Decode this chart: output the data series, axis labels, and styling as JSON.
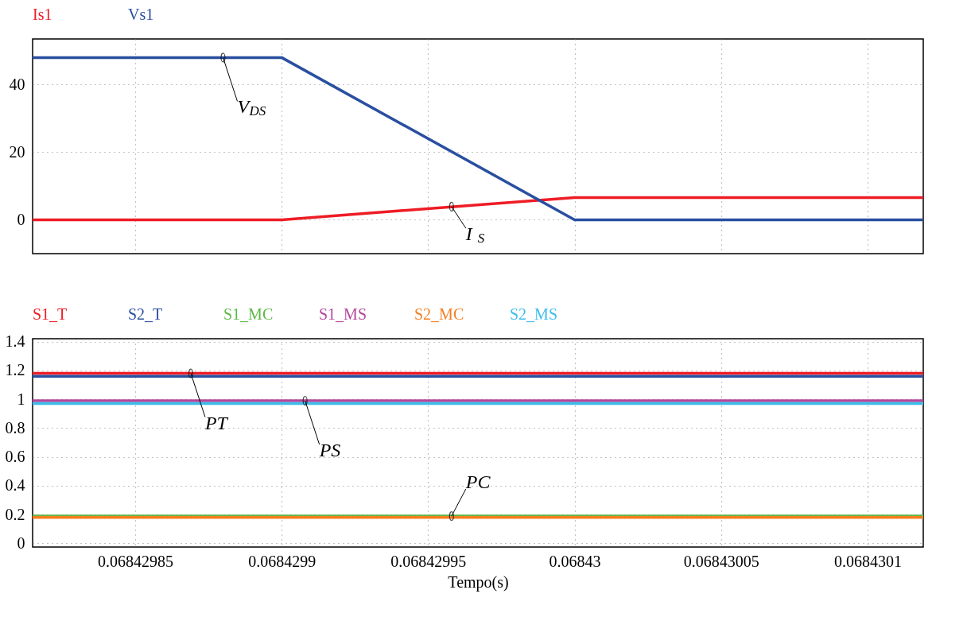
{
  "chart_data": [
    {
      "type": "line",
      "legend": "top left",
      "grid": true,
      "tick_labels": "y",
      "xlim": [
        0.068429815,
        0.068430119
      ],
      "xticks": [
        0.06842985,
        0.0684299,
        0.06842995,
        0.06843,
        0.06843005,
        0.0684301
      ],
      "ylim": [
        -10,
        53.5
      ],
      "yticks": [
        0,
        20,
        40
      ],
      "series": [
        {
          "name": "Is1",
          "color": "#ee1c25",
          "x": [
            0.068429815,
            0.0684299,
            0.06843,
            0.068430119
          ],
          "values": [
            0,
            0,
            6.6,
            6.6
          ]
        },
        {
          "name": "Vs1",
          "color": "#2a4fa0",
          "x": [
            0.068429815,
            0.0684299,
            0.06843,
            0.068430119
          ],
          "values": [
            48,
            48,
            0,
            0
          ]
        }
      ],
      "annotations": [
        {
          "text": "V$_{DS}$",
          "x": 0.06842988,
          "y": 48
        },
        {
          "text": "I$_{S}$",
          "x": 0.068429958,
          "y": 3.9
        }
      ]
    },
    {
      "type": "line",
      "legend": "top left",
      "grid": true,
      "xlabel": "Tempo(s)",
      "xlim": [
        0.068429815,
        0.068430119
      ],
      "xticks": [
        0.06842985,
        0.0684299,
        0.06842995,
        0.06843,
        0.06843005,
        0.0684301
      ],
      "ylim": [
        -0.025,
        1.42
      ],
      "yticks": [
        0,
        0.2,
        0.4,
        0.6,
        0.8,
        1,
        1.2,
        1.4
      ],
      "x": [
        0.068429815,
        0.068430119
      ],
      "series": [
        {
          "name": "S1_T",
          "color": "#ee1c25",
          "values": [
            1.18,
            1.18
          ]
        },
        {
          "name": "S2_T",
          "color": "#2a4fa0",
          "values": [
            1.16,
            1.16
          ]
        },
        {
          "name": "S1_MC",
          "color": "#5cb946",
          "values": [
            0.19,
            0.19
          ]
        },
        {
          "name": "S1_MS",
          "color": "#b4479c",
          "values": [
            0.99,
            0.99
          ]
        },
        {
          "name": "S2_MC",
          "color": "#f47f20",
          "values": [
            0.18,
            0.18
          ]
        },
        {
          "name": "S2_MS",
          "color": "#3cbdea",
          "values": [
            0.97,
            0.97
          ]
        }
      ],
      "annotations": [
        {
          "text": "PT",
          "x": 0.068429869,
          "y": 1.18
        },
        {
          "text": "PS",
          "x": 0.068429908,
          "y": 0.99
        },
        {
          "text": "PC",
          "x": 0.068429958,
          "y": 0.19
        }
      ]
    }
  ]
}
